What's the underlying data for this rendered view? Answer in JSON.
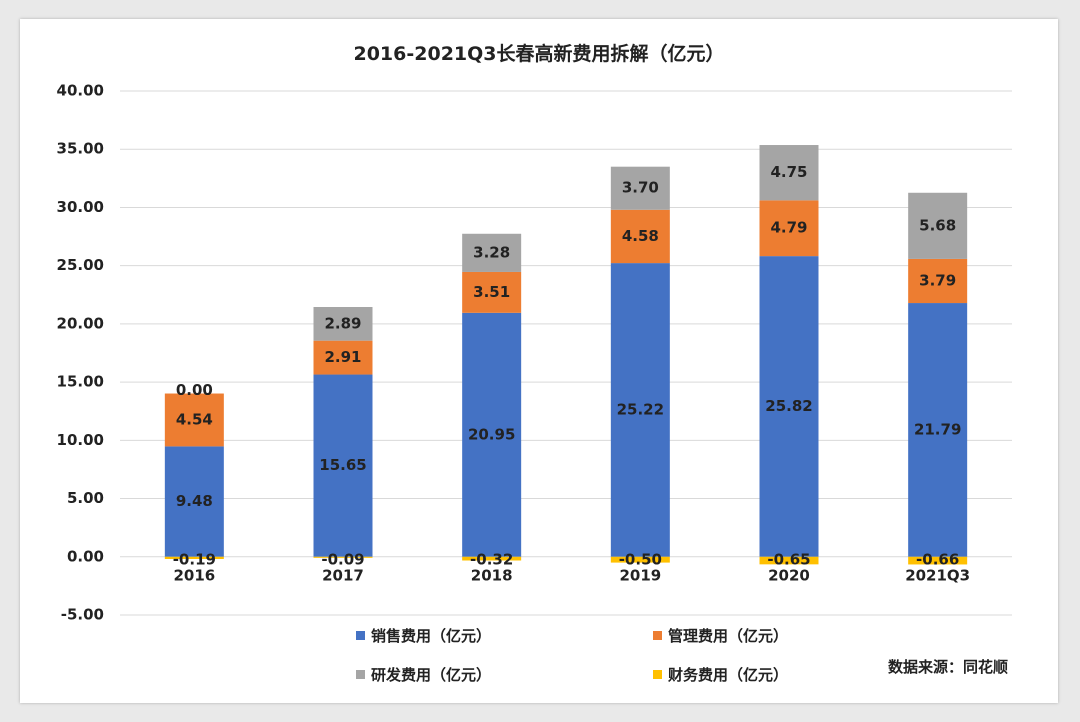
{
  "chart_data": {
    "type": "bar",
    "stacked": true,
    "title": "2016-2021Q3长春高新费用拆解（亿元）",
    "categories": [
      "2016",
      "2017",
      "2018",
      "2019",
      "2020",
      "2021Q3"
    ],
    "ylim": [
      -5,
      40
    ],
    "yticks": [
      "-5.00",
      "0.00",
      "5.00",
      "10.00",
      "15.00",
      "20.00",
      "25.00",
      "30.00",
      "35.00",
      "40.00"
    ],
    "grid": true,
    "legend_position": "bottom",
    "series": [
      {
        "name": "销售费用（亿元）",
        "color": "#4472c4",
        "values": [
          9.48,
          15.65,
          20.95,
          25.22,
          25.82,
          21.79
        ],
        "labels": [
          "9.48",
          "15.65",
          "20.95",
          "25.22",
          "25.82",
          "21.79"
        ]
      },
      {
        "name": "管理费用（亿元）",
        "color": "#ed7d31",
        "values": [
          4.54,
          2.91,
          3.51,
          4.58,
          4.79,
          3.79
        ],
        "labels": [
          "4.54",
          "2.91",
          "3.51",
          "4.58",
          "4.79",
          "3.79"
        ]
      },
      {
        "name": "研发费用（亿元）",
        "color": "#a5a5a5",
        "values": [
          0.0,
          2.89,
          3.28,
          3.7,
          4.75,
          5.68
        ],
        "labels": [
          "0.00",
          "2.89",
          "3.28",
          "3.70",
          "4.75",
          "5.68"
        ]
      },
      {
        "name": "财务费用（亿元）",
        "color": "#ffc000",
        "values": [
          -0.19,
          -0.09,
          -0.32,
          -0.5,
          -0.65,
          -0.66
        ],
        "labels": [
          "-0.19",
          "-0.09",
          "-0.32",
          "-0.50",
          "-0.65",
          "-0.66"
        ]
      }
    ]
  },
  "source_text": "数据来源：同花顺"
}
